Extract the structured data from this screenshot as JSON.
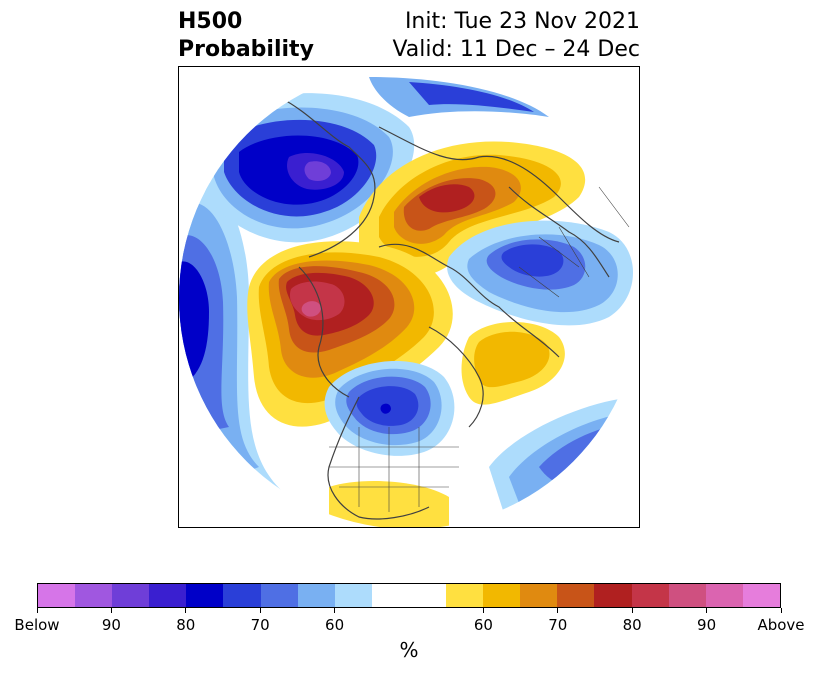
{
  "title": {
    "left_line1": "H500",
    "left_line2": "Probability",
    "right_line1": "Init: Tue 23 Nov 2021",
    "right_line2": "Valid: 11 Dec – 24 Dec"
  },
  "colorbar": {
    "unit": "%",
    "colors": [
      "#d675e8",
      "#a057e0",
      "#6f3ed8",
      "#3a1fd0",
      "#0000c8",
      "#2a3fd8",
      "#4f6fe4",
      "#79b0f2",
      "#addcfc",
      "#ffffff",
      "#ffffff",
      "#ffe040",
      "#f2b800",
      "#e08a10",
      "#c85418",
      "#b02020",
      "#c43548",
      "#cf5080",
      "#db64b0",
      "#e67ddc"
    ],
    "labels": [
      {
        "text": "Below",
        "index": 0
      },
      {
        "text": "90",
        "index": 2
      },
      {
        "text": "80",
        "index": 4
      },
      {
        "text": "70",
        "index": 6
      },
      {
        "text": "60",
        "index": 8
      },
      {
        "text": "60",
        "index": 12
      },
      {
        "text": "70",
        "index": 14
      },
      {
        "text": "80",
        "index": 16
      },
      {
        "text": "90",
        "index": 18
      },
      {
        "text": "Above",
        "index": 20
      }
    ]
  },
  "map": {
    "projection": "north-polar-stereographic",
    "coastline_color": "#404040"
  }
}
